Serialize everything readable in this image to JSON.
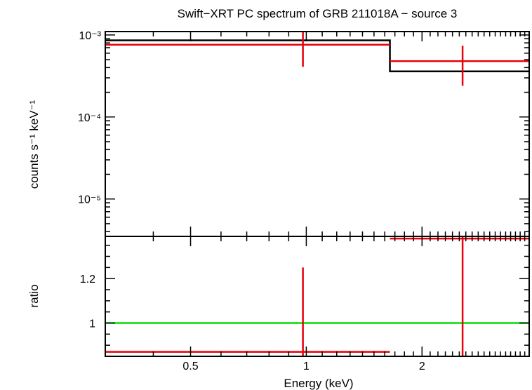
{
  "chart_data": [
    {
      "type": "line",
      "panel": "spectrum",
      "title": "Swift−XRT PC spectrum of GRB 211018A − source 3",
      "xlabel": "",
      "ylabel": "counts s⁻¹ keV⁻¹",
      "x_scale": "log",
      "y_scale": "log",
      "xlim": [
        0.3,
        3.8
      ],
      "ylim": [
        3.5e-06,
        0.0011
      ],
      "y_ticks": [
        {
          "value": 0.001,
          "label": "10⁻³"
        },
        {
          "value": 0.0001,
          "label": "10⁻⁴"
        },
        {
          "value": 1e-05,
          "label": "10⁻⁵"
        }
      ],
      "model_steps": [
        {
          "x0": 0.3,
          "x1": 1.65,
          "y": 0.00086
        },
        {
          "x0": 1.65,
          "x1": 3.8,
          "y": 0.00036
        }
      ],
      "data_points": [
        {
          "x": 0.98,
          "x_lo": 0.3,
          "x_hi": 1.65,
          "y": 0.00076,
          "y_lo": 0.00041,
          "y_hi": 0.0011
        },
        {
          "x": 2.55,
          "x_lo": 1.65,
          "x_hi": 3.8,
          "y": 0.00048,
          "y_lo": 0.00024,
          "y_hi": 0.00074
        }
      ],
      "colors": {
        "model": "#000000",
        "data": "#e8000b"
      }
    },
    {
      "type": "line",
      "panel": "ratio",
      "xlabel": "Energy (keV)",
      "ylabel": "ratio",
      "x_scale": "log",
      "y_scale": "linear",
      "xlim": [
        0.3,
        3.8
      ],
      "ylim": [
        0.85,
        1.39
      ],
      "x_ticks": [
        {
          "value": 0.5,
          "label": "0.5"
        },
        {
          "value": 1,
          "label": "1"
        },
        {
          "value": 2,
          "label": "2"
        }
      ],
      "y_ticks": [
        {
          "value": 1,
          "label": "1"
        },
        {
          "value": 1.2,
          "label": "1.2"
        }
      ],
      "reference_line": {
        "y": 1,
        "color": "#00e000"
      },
      "data_points": [
        {
          "x": 0.98,
          "x_lo": 0.3,
          "x_hi": 1.65,
          "y": 0.87,
          "y_lo": 0.85,
          "y_hi": 1.25
        },
        {
          "x": 2.55,
          "x_lo": 1.65,
          "x_hi": 3.8,
          "y": 1.38,
          "y_lo": 0.85,
          "y_hi": 1.39
        }
      ],
      "colors": {
        "data": "#e8000b"
      }
    }
  ]
}
